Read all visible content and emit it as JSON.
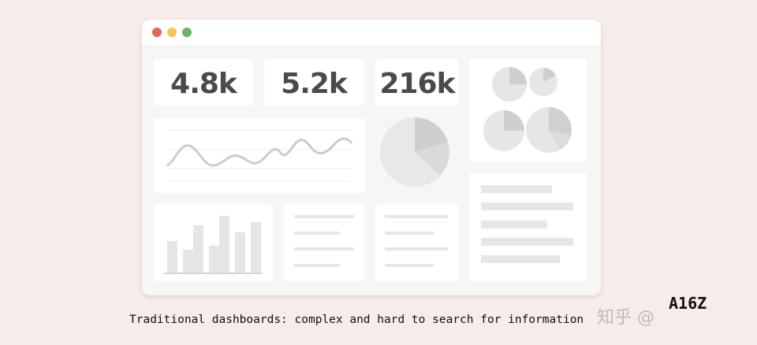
{
  "dashboard": {
    "metrics": [
      "4.8k",
      "5.2k",
      "216k"
    ]
  },
  "caption": "Traditional dashboards: complex and hard to search for information",
  "watermark": {
    "site": "知乎 @",
    "author": "A16Z"
  }
}
